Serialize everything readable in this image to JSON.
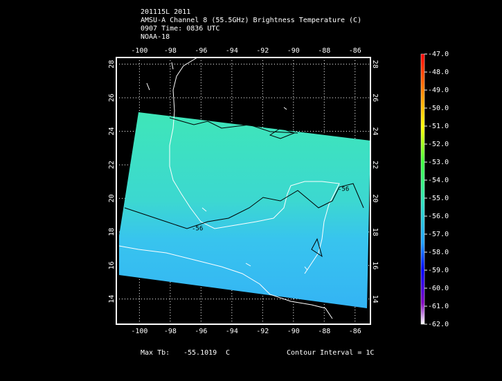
{
  "header": {
    "lines": [
      "201115L 2011",
      "AMSU-A Channel 8 (55.5GHz) Brightness Temperature (C)",
      "0907 Time: 0836 UTC",
      "NOAA-18"
    ]
  },
  "map": {
    "xlim": [
      -101.5,
      -85
    ],
    "ylim": [
      12.5,
      28.4
    ],
    "lon_ticks": [
      -100,
      -98,
      -96,
      -94,
      -92,
      -90,
      -88,
      -86
    ],
    "lat_ticks": [
      14,
      16,
      18,
      20,
      22,
      24,
      26,
      28
    ],
    "contour_labels": [
      "-56",
      "-56"
    ]
  },
  "colorbar": {
    "lim": [
      -62,
      -47
    ],
    "ticks": [
      {
        "value": -47,
        "label": "-47.0"
      },
      {
        "value": -48,
        "label": "-48.0"
      },
      {
        "value": -49,
        "label": "-49.0"
      },
      {
        "value": -50,
        "label": "-50.0"
      },
      {
        "value": -51,
        "label": "-51.0"
      },
      {
        "value": -52,
        "label": "-52.0"
      },
      {
        "value": -53,
        "label": "-53.0"
      },
      {
        "value": -54,
        "label": "-54.0"
      },
      {
        "value": -55,
        "label": "-55.0"
      },
      {
        "value": -56,
        "label": "-56.0"
      },
      {
        "value": -57,
        "label": "-57.0"
      },
      {
        "value": -58,
        "label": "-58.0"
      },
      {
        "value": -59,
        "label": "-59.0"
      },
      {
        "value": -60,
        "label": "-60.0"
      },
      {
        "value": -61,
        "label": "-61.0"
      },
      {
        "value": -62,
        "label": "-62.0"
      }
    ]
  },
  "footer": {
    "max_label": "Max Tb:",
    "max_value": -55.1019,
    "max_unit": "C",
    "contour_interval": "Contour Interval = 1C"
  }
}
